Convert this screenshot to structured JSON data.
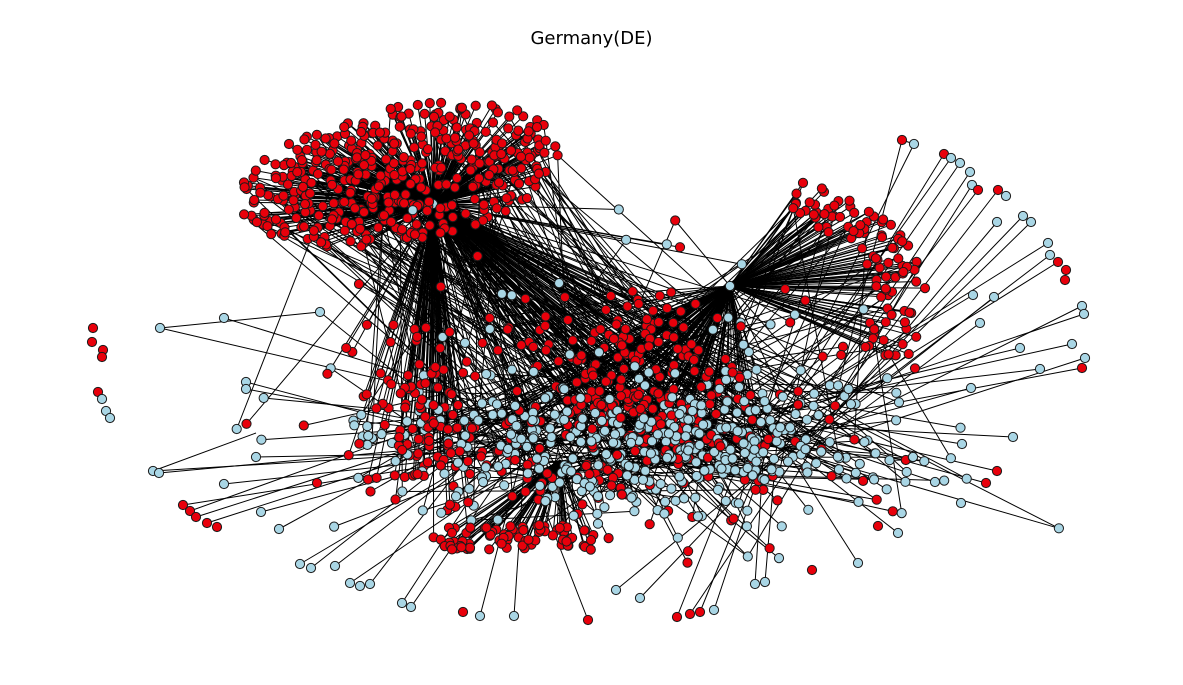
{
  "figure": {
    "title": "Germany(DE)"
  },
  "graph": {
    "node_colors": {
      "group_a": "#e8000b",
      "group_b": "#a9d6e5"
    },
    "edge_color": "#000000",
    "node_outline": "#1a1a1a"
  }
}
